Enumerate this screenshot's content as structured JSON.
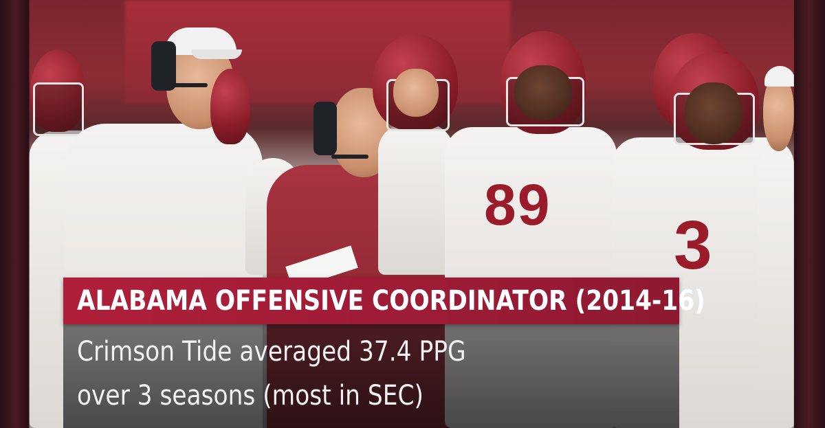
{
  "graphic": {
    "headline": "ALABAMA OFFENSIVE COORDINATOR (2014-16)",
    "stat_line_1": "Crimson Tide averaged 37.4 PPG",
    "stat_line_2": "over 3 seasons (most in SEC)"
  },
  "photo": {
    "jersey_numbers": [
      "89",
      "3"
    ]
  },
  "colors": {
    "headline_bar": "#a81d37",
    "crimson": "#9a1c2b"
  }
}
